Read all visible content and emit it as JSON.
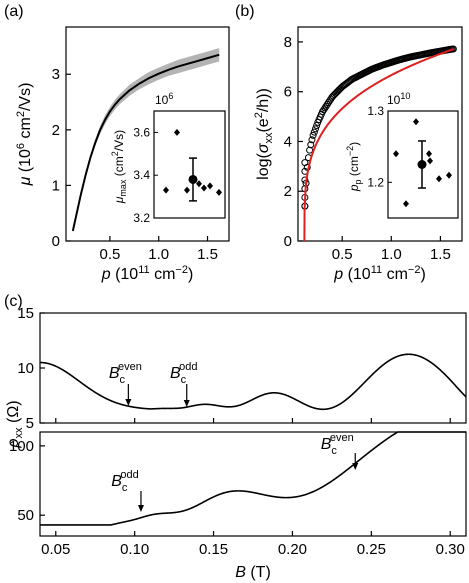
{
  "panel_labels": {
    "a": "(a)",
    "b": "(b)",
    "c": "(c)"
  },
  "chart_data": [
    {
      "id": "a",
      "type": "line",
      "xlabel_italic": "p",
      "xlabel_rest": " (10",
      "xlabel_sup": "11",
      "xlabel_tail": " cm",
      "xlabel_sup2": "−2",
      "xlabel_close": ")",
      "ylabel_italic": "μ",
      "ylabel_rest": " (10",
      "ylabel_sup": "6",
      "ylabel_tail": " cm",
      "ylabel_sup2": "2",
      "ylabel_close": "/Vs)",
      "xlim": [
        0.05,
        1.72
      ],
      "ylim": [
        0,
        3.85
      ],
      "xticks": [
        0.5,
        1.0,
        1.5
      ],
      "xtick_labels": [
        "0.5",
        "1.0",
        "1.5"
      ],
      "yticks": [
        0,
        1,
        2,
        3
      ],
      "ytick_labels": [
        "0",
        "1",
        "2",
        "3"
      ],
      "series": [
        {
          "x": [
            0.12,
            0.15,
            0.2,
            0.25,
            0.3,
            0.35,
            0.4,
            0.45,
            0.5,
            0.55,
            0.6,
            0.7,
            0.8,
            0.9,
            1.0,
            1.1,
            1.2,
            1.3,
            1.4,
            1.5,
            1.6,
            1.62
          ],
          "y": [
            0.18,
            0.42,
            0.82,
            1.18,
            1.5,
            1.77,
            2.0,
            2.18,
            2.33,
            2.45,
            2.55,
            2.71,
            2.83,
            2.93,
            3.01,
            3.08,
            3.14,
            3.19,
            3.24,
            3.29,
            3.34,
            3.35
          ],
          "band": [
            0.0,
            0.02,
            0.03,
            0.04,
            0.05,
            0.06,
            0.07,
            0.08,
            0.08,
            0.09,
            0.09,
            0.1,
            0.1,
            0.11,
            0.11,
            0.11,
            0.12,
            0.12,
            0.12,
            0.12,
            0.12,
            0.12
          ]
        }
      ],
      "inset": {
        "multiplier": "10",
        "multiplier_sup": "6",
        "ylabel_italic": "μ",
        "ylabel_sub": "max",
        "ylabel_rest": " (cm",
        "ylabel_sup": "2",
        "ylabel_close": "/Vs)",
        "ylim": [
          3.2,
          3.7
        ],
        "yticks": [
          3.2,
          3.4,
          3.6
        ],
        "ytick_labels": [
          "3.2",
          "3.4",
          "3.6"
        ],
        "points": [
          3.33,
          3.6,
          3.33,
          3.36,
          3.34,
          3.35,
          3.32
        ],
        "mean": 3.38,
        "err": 0.1
      }
    },
    {
      "id": "b",
      "type": "scatter",
      "xlabel_italic": "p",
      "xlabel_rest": " (10",
      "xlabel_sup": "11",
      "xlabel_tail": " cm",
      "xlabel_sup2": "−2",
      "xlabel_close": ")",
      "ylabel_pre": "log(",
      "ylabel_italic": "σ",
      "ylabel_sub": "xx",
      "ylabel_rest": "(e",
      "ylabel_sup": "2",
      "ylabel_close": "/h))",
      "xlim": [
        0.05,
        1.72
      ],
      "ylim": [
        0,
        8.6
      ],
      "xticks": [
        0.5,
        1.0,
        1.5
      ],
      "xtick_labels": [
        "0.5",
        "1.0",
        "1.5"
      ],
      "yticks": [
        0,
        2,
        4,
        6,
        8
      ],
      "ytick_labels": [
        "0",
        "2",
        "4",
        "6",
        "8"
      ],
      "series": [
        {
          "name": "",
          "x": [
            0.12,
            0.13,
            0.14,
            0.15,
            0.17,
            0.2,
            0.25,
            0.3,
            0.35,
            0.4,
            0.5,
            0.6,
            0.7,
            0.8,
            0.9,
            1.0,
            1.1,
            1.2,
            1.3,
            1.4,
            1.5,
            1.6,
            1.64
          ],
          "y": [
            1.4,
            2.2,
            2.8,
            3.2,
            3.7,
            4.2,
            4.75,
            5.2,
            5.5,
            5.8,
            6.2,
            6.5,
            6.7,
            6.9,
            7.05,
            7.18,
            7.3,
            7.4,
            7.48,
            7.56,
            7.63,
            7.7,
            7.72
          ]
        }
      ],
      "fit": {
        "x0": 0.115,
        "color": "#e02020"
      },
      "inset": {
        "multiplier": "10",
        "multiplier_sup": "10",
        "ylabel_italic": "p",
        "ylabel_sub": "p",
        "ylabel_rest": " (cm",
        "ylabel_sup": "−2",
        "ylabel_close": ")",
        "ylim": [
          1.15,
          1.3
        ],
        "yticks": [
          1.2,
          1.3
        ],
        "ytick_labels": [
          "1.2",
          "1.3"
        ],
        "points": [
          1.24,
          1.17,
          1.285,
          1.23,
          1.24,
          1.205,
          1.21
        ],
        "mean": 1.225,
        "err": 0.033
      }
    },
    {
      "id": "c-top",
      "type": "line",
      "ylim": [
        5,
        15
      ],
      "xlim": [
        0.04,
        0.31
      ],
      "yticks": [
        5,
        10,
        15
      ],
      "ytick_labels": [
        "5",
        "10",
        "15"
      ],
      "annotations": [
        {
          "label_italic": "B",
          "label_sub": "c",
          "label_sup": "even",
          "x": 0.096
        },
        {
          "label_italic": "B",
          "label_sub": "c",
          "label_sup": "odd",
          "x": 0.133
        }
      ]
    },
    {
      "id": "c-bottom",
      "type": "line",
      "xlabel_italic": "B",
      "xlabel_rest": " (T)",
      "ylabel_italic": "ρ",
      "ylabel_sub": "xx",
      "ylabel_rest": " (Ω)",
      "xlim": [
        0.04,
        0.31
      ],
      "ylim": [
        35,
        110
      ],
      "xticks": [
        0.05,
        0.1,
        0.15,
        0.2,
        0.25,
        0.3
      ],
      "xtick_labels": [
        "0.05",
        "0.10",
        "0.15",
        "0.20",
        "0.25",
        "0.30"
      ],
      "yticks": [
        50,
        100
      ],
      "ytick_labels": [
        "50",
        "100"
      ],
      "annotations": [
        {
          "label_italic": "B",
          "label_sub": "c",
          "label_sup": "odd",
          "x": 0.104
        },
        {
          "label_italic": "B",
          "label_sub": "c",
          "label_sup": "even",
          "x": 0.236
        }
      ]
    }
  ]
}
